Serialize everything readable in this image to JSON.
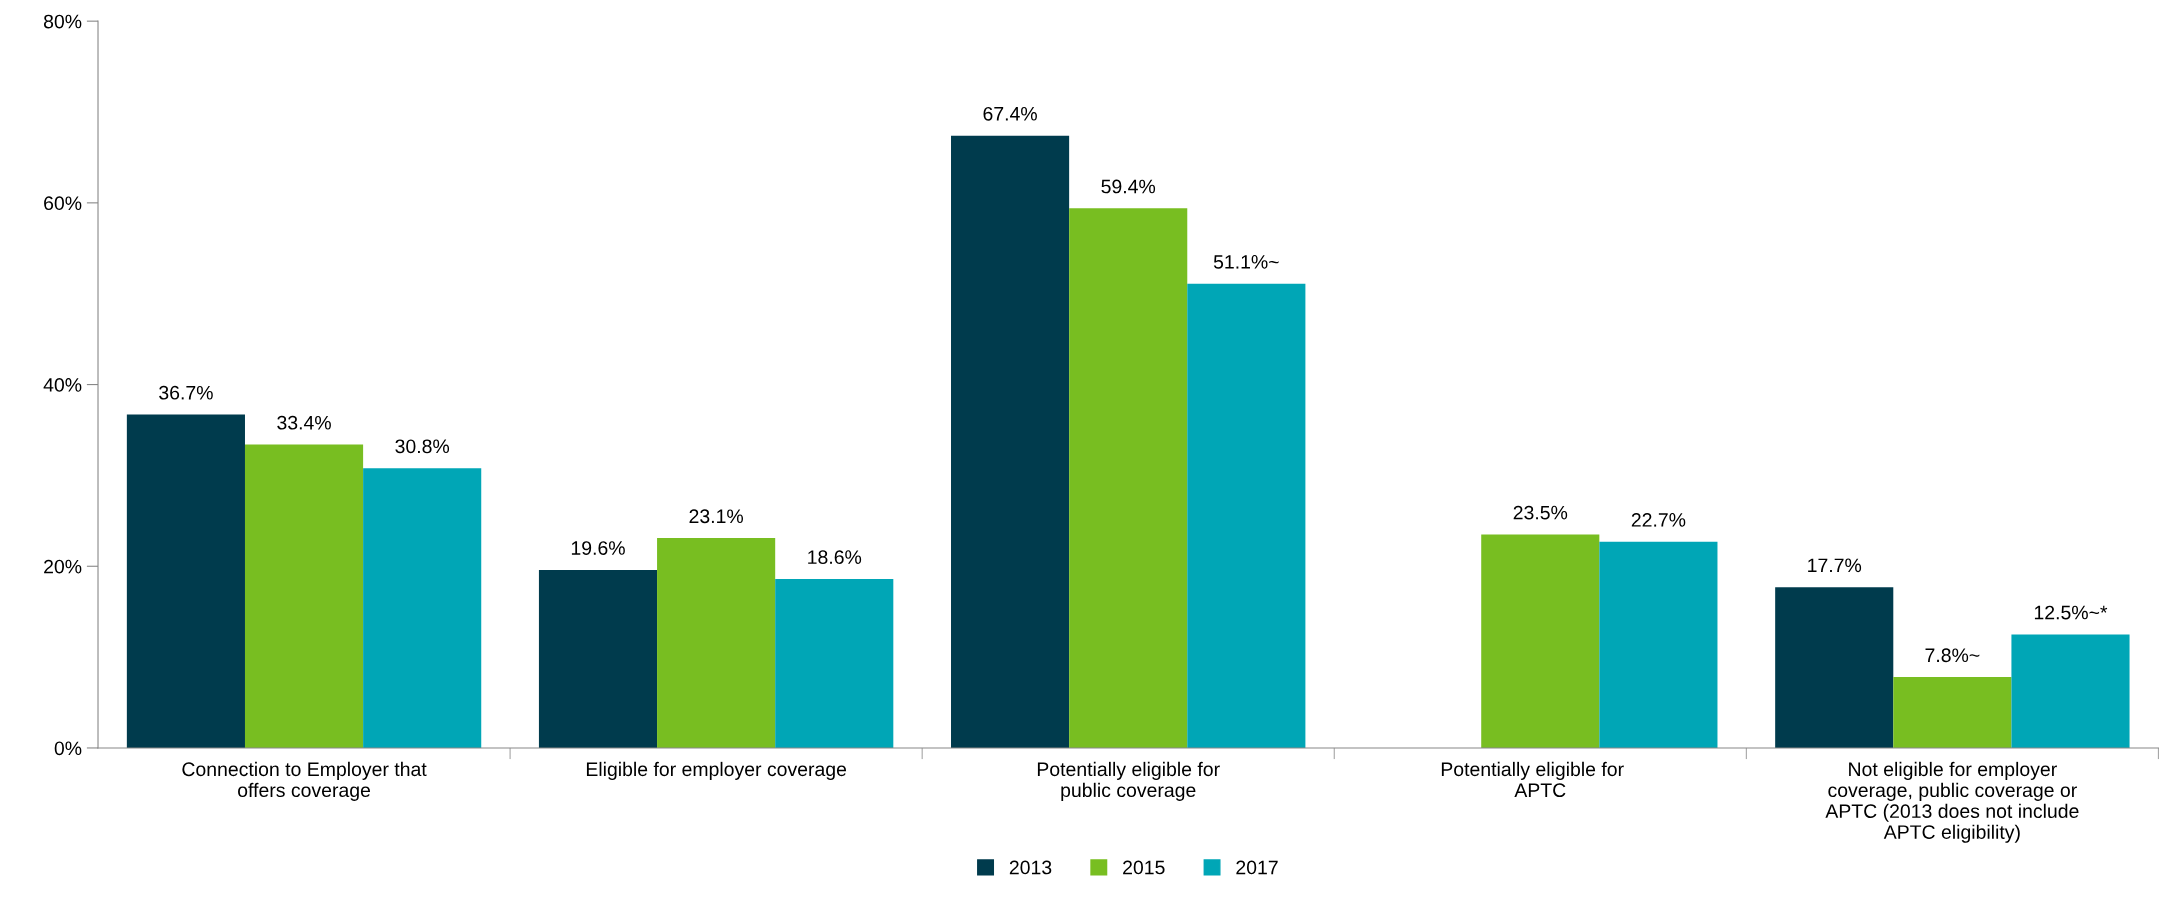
{
  "chart_data": {
    "type": "bar",
    "categories": [
      "Connection to Employer that offers coverage",
      "Eligible for employer coverage",
      "Potentially eligible for public coverage",
      "Potentially eligible for    APTC",
      "Not eligible for employer coverage, public coverage or APTC (2013 does not include APTC eligibility)"
    ],
    "series": [
      {
        "name": "2013",
        "color": "#003b4d",
        "values": [
          36.7,
          19.6,
          67.4,
          null,
          17.7
        ],
        "value_labels": [
          "36.7%",
          "19.6%",
          "67.4%",
          null,
          "17.7%"
        ]
      },
      {
        "name": "2015",
        "color": "#78be21",
        "values": [
          33.4,
          23.1,
          59.4,
          23.5,
          7.8
        ],
        "value_labels": [
          "33.4%",
          "23.1%",
          "59.4%",
          "23.5%",
          "7.8%~"
        ]
      },
      {
        "name": "2017",
        "color": "#00a6b6",
        "values": [
          30.8,
          18.6,
          51.1,
          22.7,
          12.5
        ],
        "value_labels": [
          "30.8%",
          "18.6%",
          "51.1%~",
          "22.7%",
          "12.5%~*"
        ]
      }
    ],
    "ylim": [
      0,
      80
    ],
    "yticks": [
      {
        "value": 0,
        "label": "0%"
      },
      {
        "value": 20,
        "label": "20%"
      },
      {
        "value": 40,
        "label": "40%"
      },
      {
        "value": 60,
        "label": "60%"
      },
      {
        "value": 80,
        "label": "80%"
      }
    ],
    "grid": false,
    "legend": "bottom"
  }
}
